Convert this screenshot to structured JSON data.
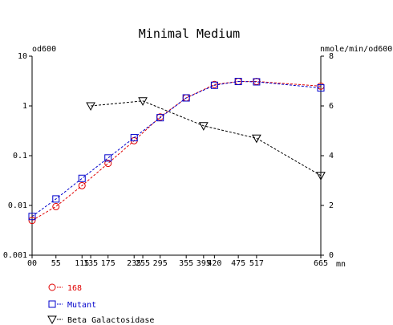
{
  "chart_data": {
    "type": "line",
    "title": "Minimal Medium",
    "y_left_label": "od600",
    "y_right_label": "nmole/min/od600",
    "x_unit_label": "mn",
    "x_ticks": [
      0,
      55,
      115,
      135,
      175,
      235,
      255,
      295,
      355,
      395,
      420,
      475,
      517,
      665
    ],
    "x_tick_labels": [
      "00",
      "55",
      "115",
      "135",
      "175",
      "235",
      "255",
      "295",
      "355",
      "395",
      "420",
      "475",
      "517",
      "665"
    ],
    "xlim": [
      0,
      665
    ],
    "y_left_scale": "log",
    "y_left_ticks": [
      0.001,
      0.01,
      0.1,
      1,
      10
    ],
    "y_left_tick_labels": [
      "0.001",
      "0.01",
      "0.1",
      "1",
      "10"
    ],
    "y_left_lim": [
      0.001,
      10
    ],
    "y_right_ticks": [
      0,
      2,
      4,
      6,
      8
    ],
    "y_right_tick_labels": [
      "0",
      "2",
      "4",
      "6",
      "8"
    ],
    "y_right_lim": [
      0,
      8
    ],
    "grid": false,
    "series": [
      {
        "name": "168",
        "axis": "left",
        "color": "#e00000",
        "marker": "circle",
        "x": [
          0,
          55,
          115,
          175,
          235,
          295,
          355,
          420,
          475,
          517,
          665
        ],
        "y": [
          0.005,
          0.0095,
          0.025,
          0.07,
          0.2,
          0.6,
          1.45,
          2.7,
          3.1,
          3.1,
          2.5
        ]
      },
      {
        "name": "Mutant",
        "axis": "left",
        "color": "#0000cc",
        "marker": "square",
        "x": [
          0,
          55,
          115,
          175,
          235,
          295,
          355,
          420,
          475,
          517,
          665
        ],
        "y": [
          0.006,
          0.0135,
          0.035,
          0.09,
          0.23,
          0.58,
          1.45,
          2.6,
          3.1,
          3.05,
          2.3
        ]
      },
      {
        "name": "Beta Galactosidase",
        "axis": "right",
        "color": "#000000",
        "marker": "triangle-down",
        "x": [
          135,
          255,
          395,
          517,
          665
        ],
        "y": [
          6.0,
          6.2,
          5.2,
          4.7,
          3.2
        ]
      }
    ]
  }
}
